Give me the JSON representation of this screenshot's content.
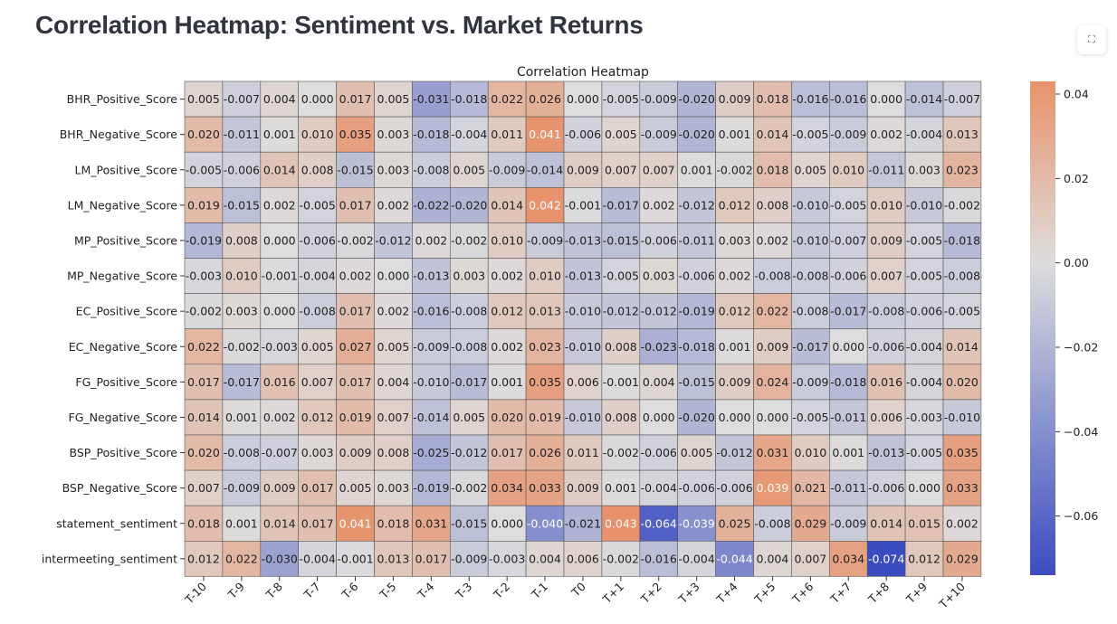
{
  "page": {
    "title": "Correlation Heatmap: Sentiment vs. Market Returns",
    "fullscreen_icon": "expand-icon"
  },
  "chart_data": {
    "type": "heatmap",
    "title": "Correlation Heatmap",
    "xlabel": "",
    "ylabel": "",
    "x": [
      "T-10",
      "T-9",
      "T-8",
      "T-7",
      "T-6",
      "T-5",
      "T-4",
      "T-3",
      "T-2",
      "T-1",
      "T0",
      "T+1",
      "T+2",
      "T+3",
      "T+4",
      "T+5",
      "T+6",
      "T+7",
      "T+8",
      "T+9",
      "T+10"
    ],
    "y": [
      "BHR_Positive_Score",
      "BHR_Negative_Score",
      "LM_Positive_Score",
      "LM_Negative_Score",
      "MP_Positive_Score",
      "MP_Negative_Score",
      "EC_Positive_Score",
      "EC_Negative_Score",
      "FG_Positive_Score",
      "FG_Negative_Score",
      "BSP_Positive_Score",
      "BSP_Negative_Score",
      "statement_sentiment",
      "intermeeting_sentiment"
    ],
    "values": [
      [
        0.005,
        -0.007,
        0.004,
        -0.0,
        0.017,
        0.005,
        -0.031,
        -0.018,
        0.022,
        0.026,
        -0.0,
        -0.005,
        -0.009,
        -0.02,
        0.009,
        0.018,
        -0.016,
        -0.016,
        -0.0,
        -0.014,
        -0.007
      ],
      [
        0.02,
        -0.011,
        0.001,
        0.01,
        0.035,
        0.003,
        -0.018,
        -0.004,
        0.011,
        0.041,
        -0.006,
        0.005,
        -0.009,
        -0.02,
        0.001,
        0.014,
        -0.005,
        -0.009,
        0.002,
        -0.004,
        0.013
      ],
      [
        -0.005,
        -0.006,
        0.014,
        0.008,
        -0.015,
        0.003,
        -0.008,
        0.005,
        -0.009,
        -0.014,
        0.009,
        0.007,
        0.007,
        0.001,
        -0.002,
        0.018,
        0.005,
        0.01,
        -0.011,
        0.003,
        0.023
      ],
      [
        0.019,
        -0.015,
        0.002,
        -0.005,
        0.017,
        0.002,
        -0.022,
        -0.02,
        0.014,
        0.042,
        -0.001,
        -0.017,
        0.002,
        -0.012,
        0.012,
        0.008,
        -0.01,
        -0.005,
        0.01,
        -0.01,
        -0.002
      ],
      [
        -0.019,
        0.008,
        0.0,
        -0.006,
        -0.002,
        -0.012,
        0.002,
        -0.002,
        0.01,
        -0.009,
        -0.013,
        -0.015,
        -0.006,
        -0.011,
        0.003,
        0.002,
        -0.01,
        -0.007,
        0.009,
        -0.005,
        -0.018
      ],
      [
        -0.003,
        0.01,
        -0.001,
        -0.004,
        0.002,
        -0.0,
        -0.013,
        0.003,
        0.002,
        0.01,
        -0.013,
        -0.005,
        0.003,
        -0.006,
        0.002,
        -0.008,
        -0.008,
        -0.006,
        0.007,
        -0.005,
        -0.008
      ],
      [
        -0.002,
        0.003,
        -0.0,
        -0.008,
        0.017,
        0.002,
        -0.016,
        -0.008,
        0.012,
        0.013,
        -0.01,
        -0.012,
        -0.012,
        -0.019,
        0.012,
        0.022,
        -0.008,
        -0.017,
        -0.008,
        -0.006,
        -0.005
      ],
      [
        0.022,
        -0.002,
        -0.003,
        0.005,
        0.027,
        0.005,
        -0.009,
        -0.008,
        0.002,
        0.023,
        -0.01,
        0.008,
        -0.023,
        -0.018,
        0.001,
        0.009,
        -0.017,
        0.0,
        -0.006,
        -0.004,
        0.014
      ],
      [
        0.017,
        -0.017,
        0.016,
        0.007,
        0.017,
        0.004,
        -0.01,
        -0.017,
        0.001,
        0.035,
        0.006,
        -0.001,
        0.004,
        -0.015,
        0.009,
        0.024,
        -0.009,
        -0.018,
        0.016,
        -0.004,
        0.02
      ],
      [
        0.014,
        0.001,
        0.002,
        0.012,
        0.019,
        0.007,
        -0.014,
        0.005,
        0.02,
        0.019,
        -0.01,
        0.008,
        0.0,
        -0.02,
        0.0,
        0.0,
        -0.005,
        -0.011,
        0.006,
        -0.003,
        -0.01
      ],
      [
        0.02,
        -0.008,
        -0.007,
        0.003,
        0.009,
        0.008,
        -0.025,
        -0.012,
        0.017,
        0.026,
        0.011,
        -0.002,
        -0.006,
        0.005,
        -0.012,
        0.031,
        0.01,
        0.001,
        -0.013,
        -0.005,
        0.035
      ],
      [
        0.007,
        -0.009,
        0.009,
        0.017,
        0.005,
        0.003,
        -0.019,
        -0.002,
        0.034,
        0.033,
        0.009,
        0.001,
        -0.004,
        -0.006,
        -0.006,
        0.039,
        0.021,
        -0.011,
        -0.006,
        -0.0,
        0.033
      ],
      [
        0.018,
        0.001,
        0.014,
        0.017,
        0.041,
        0.018,
        0.031,
        -0.015,
        0.0,
        -0.04,
        -0.021,
        0.043,
        -0.064,
        -0.039,
        0.025,
        -0.008,
        0.029,
        -0.009,
        0.014,
        0.015,
        0.002
      ],
      [
        0.012,
        0.022,
        -0.03,
        -0.004,
        -0.001,
        0.013,
        0.017,
        -0.009,
        -0.003,
        0.004,
        0.006,
        -0.002,
        -0.016,
        -0.004,
        -0.044,
        0.004,
        0.007,
        0.034,
        -0.074,
        0.012,
        0.029
      ]
    ],
    "value_format": "%.3f",
    "colorbar": {
      "min": -0.074,
      "max": 0.043,
      "center": 0,
      "ticks": [
        0.04,
        0.02,
        0.0,
        -0.02,
        -0.04,
        -0.06
      ],
      "tick_labels": [
        "0.04",
        "0.02",
        "0.00",
        "−0.02",
        "−0.04",
        "−0.06"
      ]
    },
    "colormap": "coolwarm",
    "colors": {
      "negative_end": "#3b4cc0",
      "center": "#dddddd",
      "positive_end": "#e8916a"
    },
    "grid": true
  }
}
